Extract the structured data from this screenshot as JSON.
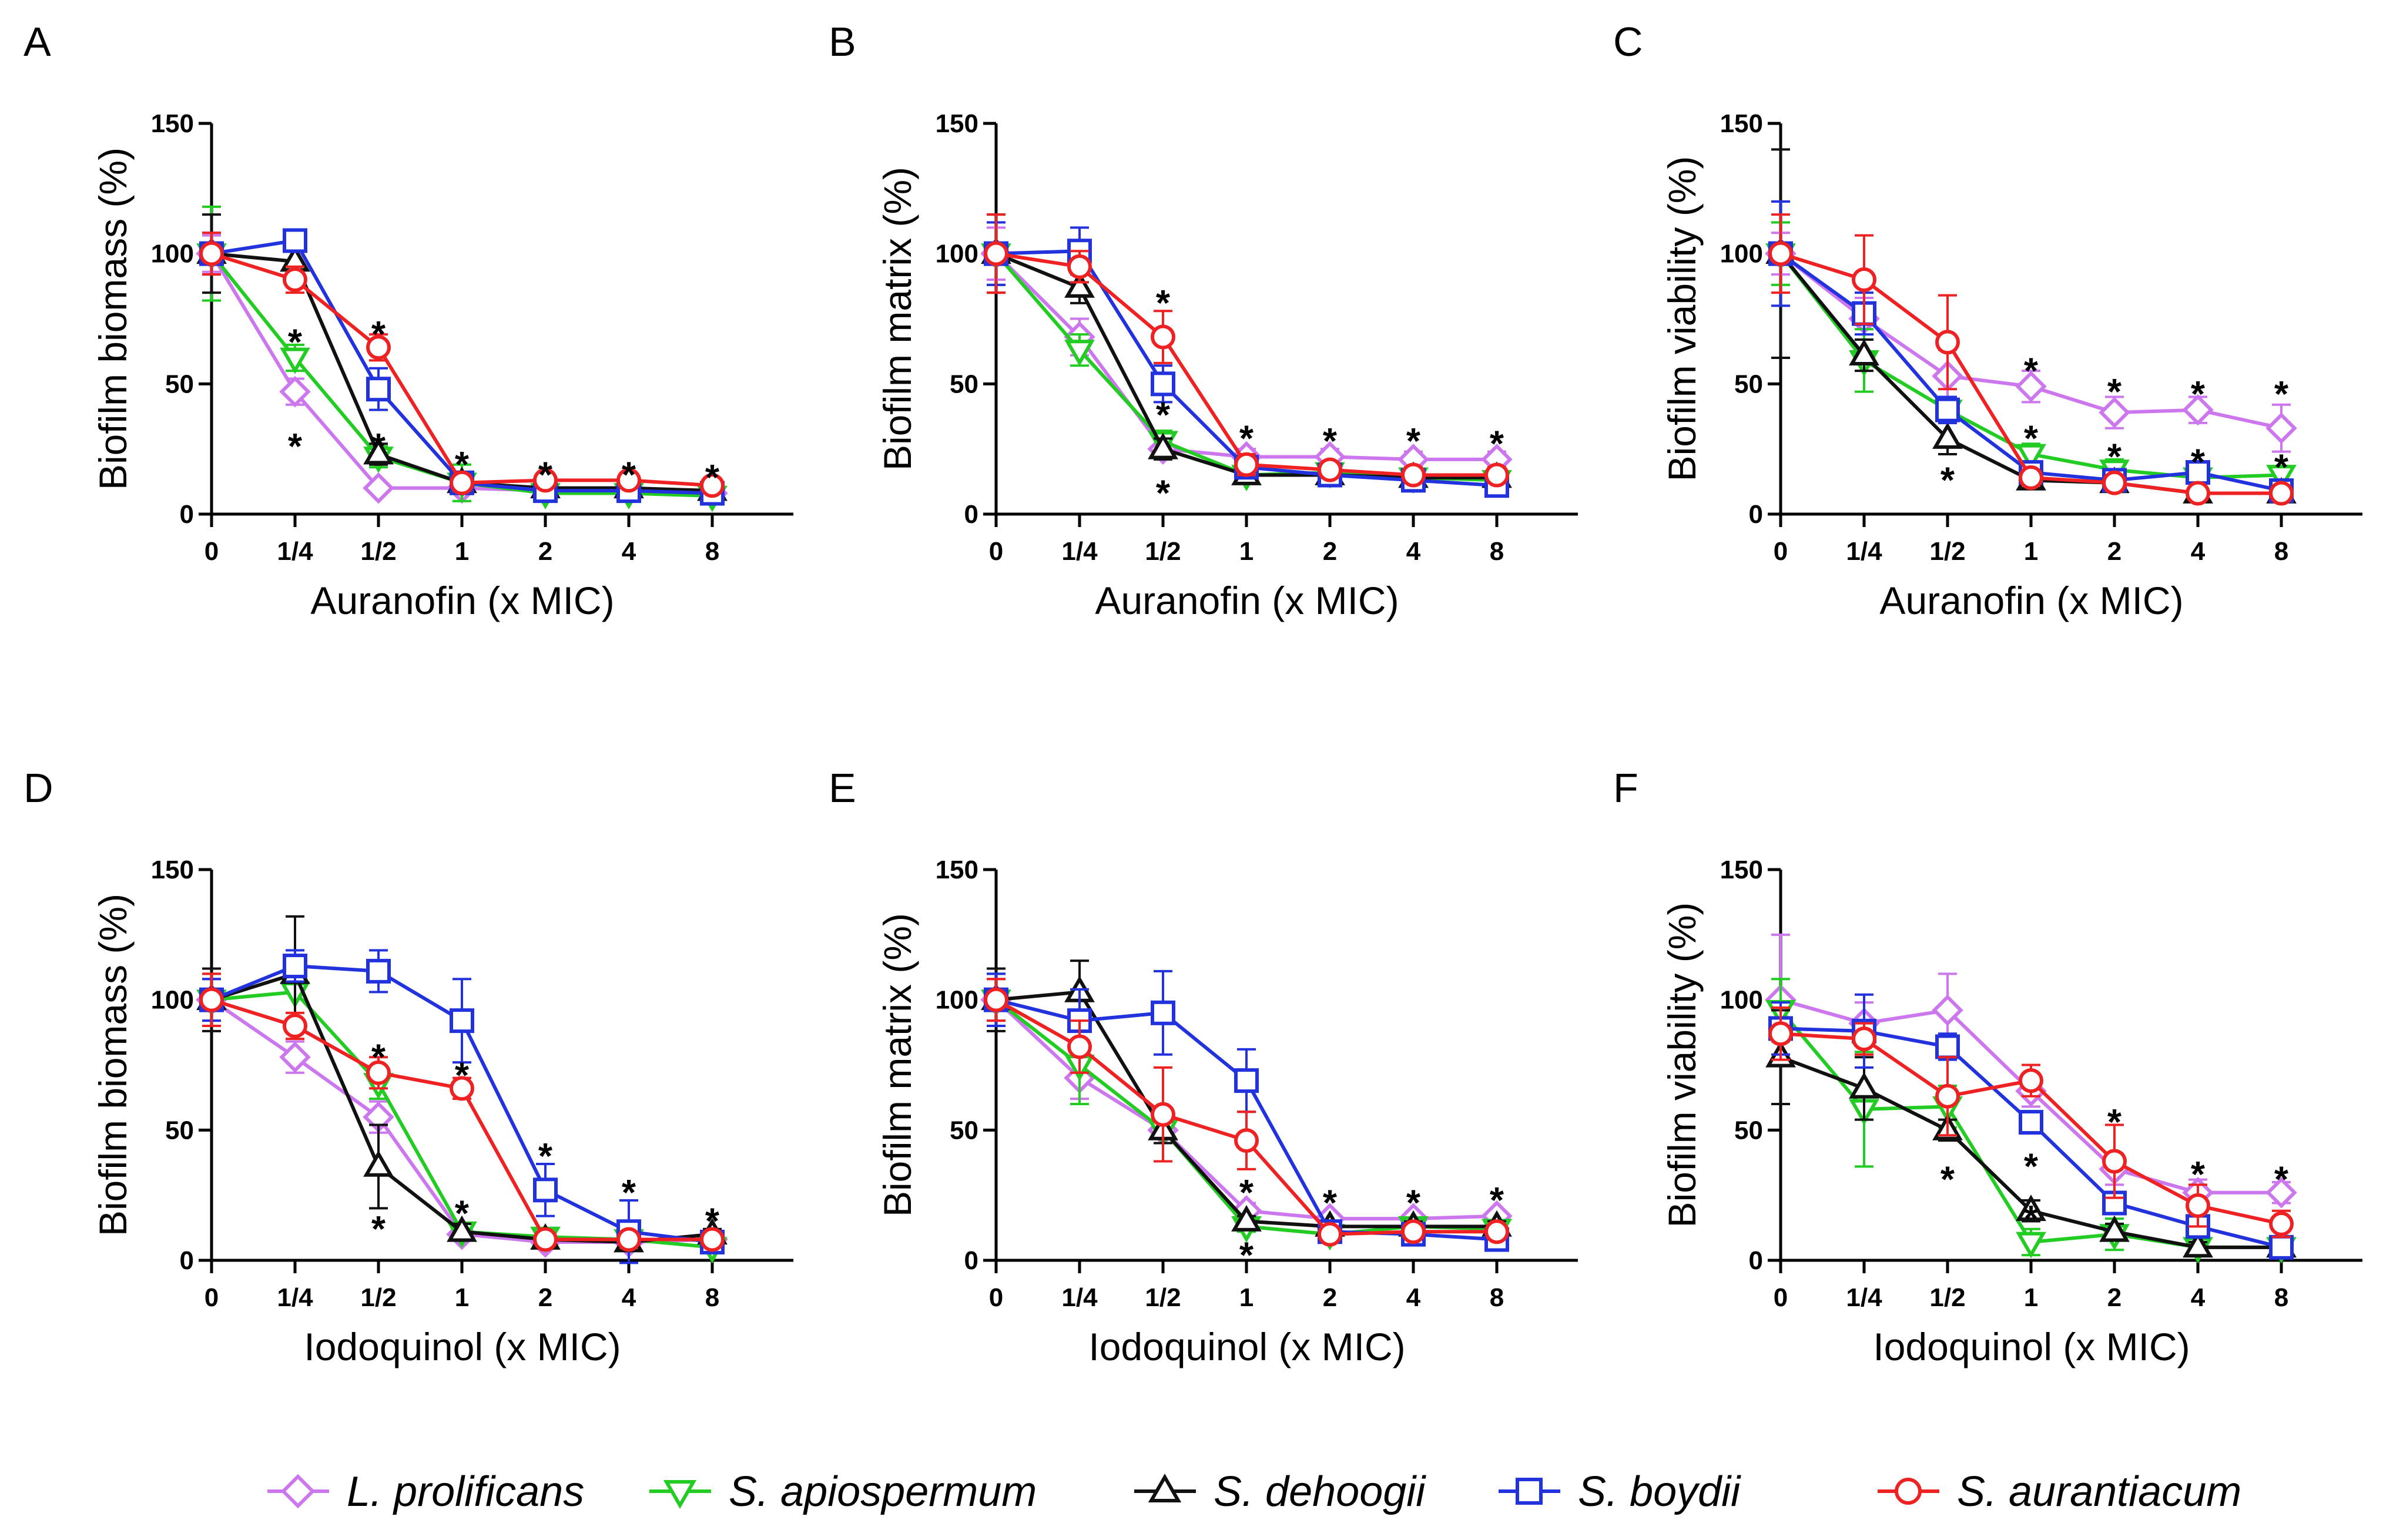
{
  "figure": {
    "legend": [
      {
        "name": "L. prolificans",
        "color": "#cc77ee",
        "marker": "diamond"
      },
      {
        "name": "S. apiospermum",
        "color": "#22cc22",
        "marker": "triangle-down"
      },
      {
        "name": "S. dehoogii",
        "color": "#111111",
        "marker": "triangle-up"
      },
      {
        "name": "S. boydii",
        "color": "#2233dd",
        "marker": "square"
      },
      {
        "name": "S. aurantiacum",
        "color": "#ee2222",
        "marker": "circle"
      }
    ]
  },
  "chart_data": [
    {
      "panel": "A",
      "type": "line",
      "title": "",
      "xlabel": "Auranofin (x MIC)",
      "ylabel": "Biofilm biomass (%)",
      "categories": [
        "0",
        "1/4",
        "1/2",
        "1",
        "2",
        "4",
        "8"
      ],
      "ylim": [
        0,
        150
      ],
      "yticks": [
        "0",
        "50",
        "100",
        "150"
      ],
      "series": [
        {
          "name": "L. prolificans",
          "values": [
            100,
            47,
            10,
            10,
            9,
            9,
            8
          ],
          "errors": [
            7,
            5,
            2,
            2,
            2,
            2,
            2
          ]
        },
        {
          "name": "S. apiospermum",
          "values": [
            100,
            60,
            22,
            12,
            8,
            8,
            7
          ],
          "errors": [
            18,
            5,
            4,
            7,
            3,
            3,
            2
          ]
        },
        {
          "name": "S. dehoogii",
          "values": [
            100,
            97,
            23,
            12,
            10,
            10,
            9
          ],
          "errors": [
            15,
            4,
            4,
            3,
            2,
            2,
            2
          ]
        },
        {
          "name": "S. boydii",
          "values": [
            100,
            105,
            48,
            12,
            9,
            9,
            8
          ],
          "errors": [
            8,
            3,
            8,
            4,
            2,
            2,
            2
          ]
        },
        {
          "name": "S. aurantiacum",
          "values": [
            100,
            90,
            64,
            12,
            13,
            13,
            11
          ],
          "errors": [
            8,
            5,
            5,
            3,
            2,
            2,
            2
          ]
        }
      ],
      "annotations": [
        {
          "text": "*",
          "x": "1/4",
          "y": 68
        },
        {
          "text": "*",
          "x": "1/4",
          "y": 28
        },
        {
          "text": "*",
          "x": "1/2",
          "y": 71
        },
        {
          "text": "*",
          "x": "1/2",
          "y": 28
        },
        {
          "text": "*",
          "x": "1",
          "y": 21
        },
        {
          "text": "*",
          "x": "2",
          "y": 17
        },
        {
          "text": "*",
          "x": "4",
          "y": 17
        },
        {
          "text": "*",
          "x": "8",
          "y": 16
        }
      ]
    },
    {
      "panel": "B",
      "type": "line",
      "title": "",
      "xlabel": "Auranofin (x MIC)",
      "ylabel": "Biofilm matrix (%)",
      "categories": [
        "0",
        "1/4",
        "1/2",
        "1",
        "2",
        "4",
        "8"
      ],
      "ylim": [
        0,
        150
      ],
      "yticks": [
        "0",
        "50",
        "100",
        "150"
      ],
      "series": [
        {
          "name": "L. prolificans",
          "values": [
            100,
            68,
            25,
            22,
            22,
            21,
            21
          ],
          "errors": [
            10,
            7,
            4,
            3,
            3,
            3,
            3
          ]
        },
        {
          "name": "S. apiospermum",
          "values": [
            100,
            63,
            28,
            15,
            16,
            14,
            13
          ],
          "errors": [
            12,
            6,
            4,
            2,
            2,
            2,
            2
          ]
        },
        {
          "name": "S. dehoogii",
          "values": [
            100,
            87,
            25,
            15,
            15,
            14,
            14
          ],
          "errors": [
            15,
            6,
            4,
            2,
            2,
            2,
            2
          ]
        },
        {
          "name": "S. boydii",
          "values": [
            100,
            101,
            50,
            18,
            15,
            13,
            11
          ],
          "errors": [
            12,
            9,
            7,
            3,
            3,
            3,
            3
          ]
        },
        {
          "name": "S. aurantiacum",
          "values": [
            100,
            95,
            68,
            19,
            17,
            15,
            15
          ],
          "errors": [
            15,
            6,
            10,
            4,
            3,
            3,
            3
          ]
        }
      ],
      "annotations": [
        {
          "text": "*",
          "x": "1/2",
          "y": 83
        },
        {
          "text": "*",
          "x": "1/2",
          "y": 40
        },
        {
          "text": "*",
          "x": "1/2",
          "y": 10
        },
        {
          "text": "*",
          "x": "1",
          "y": 31
        },
        {
          "text": "*",
          "x": "2",
          "y": 30
        },
        {
          "text": "*",
          "x": "4",
          "y": 30
        },
        {
          "text": "*",
          "x": "8",
          "y": 29
        }
      ]
    },
    {
      "panel": "C",
      "type": "line",
      "title": "",
      "xlabel": "Auranofin (x MIC)",
      "ylabel": "Biofilm viability (%)",
      "categories": [
        "0",
        "1/4",
        "1/2",
        "1",
        "2",
        "4",
        "8"
      ],
      "ylim": [
        0,
        150
      ],
      "yticks": [
        "0",
        "50",
        "100",
        "150"
      ],
      "series": [
        {
          "name": "L. prolificans",
          "values": [
            100,
            75,
            53,
            49,
            39,
            40,
            33
          ],
          "errors": [
            8,
            8,
            10,
            6,
            6,
            5,
            9
          ]
        },
        {
          "name": "S. apiospermum",
          "values": [
            100,
            59,
            40,
            23,
            17,
            14,
            15
          ],
          "errors": [
            12,
            12,
            5,
            4,
            4,
            3,
            3
          ]
        },
        {
          "name": "S. dehoogii",
          "values": [
            100,
            61,
            29,
            13,
            12,
            8,
            8
          ],
          "errors": [
            40,
            6,
            6,
            3,
            3,
            2,
            2
          ]
        },
        {
          "name": "S. boydii",
          "values": [
            100,
            77,
            40,
            16,
            13,
            16,
            9
          ],
          "errors": [
            20,
            8,
            5,
            4,
            3,
            3,
            3
          ]
        },
        {
          "name": "S. aurantiacum",
          "values": [
            100,
            90,
            66,
            14,
            12,
            8,
            8
          ],
          "errors": [
            15,
            17,
            18,
            3,
            3,
            2,
            2
          ]
        }
      ],
      "annotations": [
        {
          "text": "*",
          "x": "1",
          "y": 57
        },
        {
          "text": "*",
          "x": "1",
          "y": 31
        },
        {
          "text": "*",
          "x": "1/2",
          "y": 15
        },
        {
          "text": "*",
          "x": "2",
          "y": 49
        },
        {
          "text": "*",
          "x": "2",
          "y": 24
        },
        {
          "text": "*",
          "x": "4",
          "y": 48
        },
        {
          "text": "*",
          "x": "4",
          "y": 22
        },
        {
          "text": "*",
          "x": "8",
          "y": 48
        },
        {
          "text": "*",
          "x": "8",
          "y": 20
        }
      ]
    },
    {
      "panel": "D",
      "type": "line",
      "title": "",
      "xlabel": "Iodoquinol (x MIC)",
      "ylabel": "Biofilm biomass (%)",
      "categories": [
        "0",
        "1/4",
        "1/2",
        "1",
        "2",
        "4",
        "8"
      ],
      "ylim": [
        0,
        150
      ],
      "yticks": [
        "0",
        "50",
        "100",
        "150"
      ],
      "series": [
        {
          "name": "L. prolificans",
          "values": [
            100,
            78,
            55,
            10,
            7,
            7,
            8
          ],
          "errors": [
            8,
            6,
            6,
            2,
            2,
            2,
            2
          ]
        },
        {
          "name": "S. apiospermum",
          "values": [
            100,
            103,
            68,
            11,
            9,
            8,
            5
          ],
          "errors": [
            10,
            12,
            6,
            2,
            2,
            2,
            2
          ]
        },
        {
          "name": "S. dehoogii",
          "values": [
            100,
            110,
            36,
            11,
            8,
            7,
            10
          ],
          "errors": [
            12,
            22,
            16,
            3,
            2,
            2,
            2
          ]
        },
        {
          "name": "S. boydii",
          "values": [
            100,
            113,
            111,
            92,
            27,
            11,
            7
          ],
          "errors": [
            8,
            6,
            8,
            16,
            10,
            12,
            2
          ]
        },
        {
          "name": "S. aurantiacum",
          "values": [
            100,
            90,
            72,
            66,
            8,
            8,
            8
          ],
          "errors": [
            10,
            5,
            6,
            4,
            2,
            2,
            2
          ]
        }
      ],
      "annotations": [
        {
          "text": "*",
          "x": "1/2",
          "y": 80
        },
        {
          "text": "*",
          "x": "1/2",
          "y": 14
        },
        {
          "text": "*",
          "x": "1",
          "y": 73
        },
        {
          "text": "*",
          "x": "1",
          "y": 20
        },
        {
          "text": "*",
          "x": "2",
          "y": 42
        },
        {
          "text": "*",
          "x": "4",
          "y": 28
        },
        {
          "text": "*",
          "x": "8",
          "y": 17
        }
      ]
    },
    {
      "panel": "E",
      "type": "line",
      "title": "",
      "xlabel": "Iodoquinol (x MIC)",
      "ylabel": "Biofilm matrix (%)",
      "categories": [
        "0",
        "1/4",
        "1/2",
        "1",
        "2",
        "4",
        "8"
      ],
      "ylim": [
        0,
        150
      ],
      "yticks": [
        "0",
        "50",
        "100",
        "150"
      ],
      "series": [
        {
          "name": "L. prolificans",
          "values": [
            100,
            70,
            50,
            19,
            16,
            16,
            17
          ],
          "errors": [
            8,
            8,
            5,
            3,
            2,
            2,
            2
          ]
        },
        {
          "name": "S. apiospermum",
          "values": [
            100,
            75,
            50,
            13,
            10,
            13,
            12
          ],
          "errors": [
            10,
            15,
            5,
            2,
            2,
            2,
            2
          ]
        },
        {
          "name": "S. dehoogii",
          "values": [
            100,
            103,
            50,
            15,
            13,
            13,
            13
          ],
          "errors": [
            12,
            12,
            5,
            2,
            2,
            2,
            2
          ]
        },
        {
          "name": "S. boydii",
          "values": [
            100,
            92,
            95,
            69,
            11,
            10,
            8
          ],
          "errors": [
            10,
            12,
            16,
            12,
            2,
            2,
            2
          ]
        },
        {
          "name": "S. aurantiacum",
          "values": [
            100,
            82,
            56,
            46,
            10,
            11,
            11
          ],
          "errors": [
            8,
            10,
            18,
            11,
            2,
            2,
            2
          ]
        }
      ],
      "annotations": [
        {
          "text": "*",
          "x": "1",
          "y": 28
        },
        {
          "text": "*",
          "x": "1",
          "y": 4
        },
        {
          "text": "*",
          "x": "2",
          "y": 24
        },
        {
          "text": "*",
          "x": "4",
          "y": 24
        },
        {
          "text": "*",
          "x": "8",
          "y": 25
        }
      ]
    },
    {
      "panel": "F",
      "type": "line",
      "title": "",
      "xlabel": "Iodoquinol (x MIC)",
      "ylabel": "Biofilm viability (%)",
      "categories": [
        "0",
        "1/4",
        "1/2",
        "1",
        "2",
        "4",
        "8"
      ],
      "ylim": [
        0,
        150
      ],
      "yticks": [
        "0",
        "50",
        "100",
        "150"
      ],
      "series": [
        {
          "name": "L. prolificans",
          "values": [
            100,
            91,
            96,
            65,
            35,
            26,
            26
          ],
          "errors": [
            25,
            8,
            14,
            6,
            6,
            5,
            4
          ]
        },
        {
          "name": "S. apiospermum",
          "values": [
            96,
            58,
            59,
            7,
            10,
            5,
            5
          ],
          "errors": [
            12,
            22,
            8,
            5,
            6,
            2,
            2
          ]
        },
        {
          "name": "S. dehoogii",
          "values": [
            78,
            66,
            50,
            19,
            11,
            5,
            5
          ],
          "errors": [
            18,
            12,
            4,
            4,
            3,
            2,
            2
          ]
        },
        {
          "name": "S. boydii",
          "values": [
            89,
            88,
            82,
            53,
            22,
            13,
            5
          ],
          "errors": [
            10,
            14,
            5,
            3,
            3,
            3,
            2
          ]
        },
        {
          "name": "S. aurantiacum",
          "values": [
            87,
            85,
            63,
            69,
            38,
            21,
            14
          ],
          "errors": [
            10,
            6,
            15,
            6,
            14,
            8,
            5
          ]
        }
      ],
      "annotations": [
        {
          "text": "*",
          "x": "1/2",
          "y": 33
        },
        {
          "text": "*",
          "x": "1",
          "y": 38
        },
        {
          "text": "*",
          "x": "1",
          "y": 18
        },
        {
          "text": "*",
          "x": "2",
          "y": 55
        },
        {
          "text": "*",
          "x": "4",
          "y": 35
        },
        {
          "text": "*",
          "x": "8",
          "y": 33
        }
      ]
    }
  ]
}
